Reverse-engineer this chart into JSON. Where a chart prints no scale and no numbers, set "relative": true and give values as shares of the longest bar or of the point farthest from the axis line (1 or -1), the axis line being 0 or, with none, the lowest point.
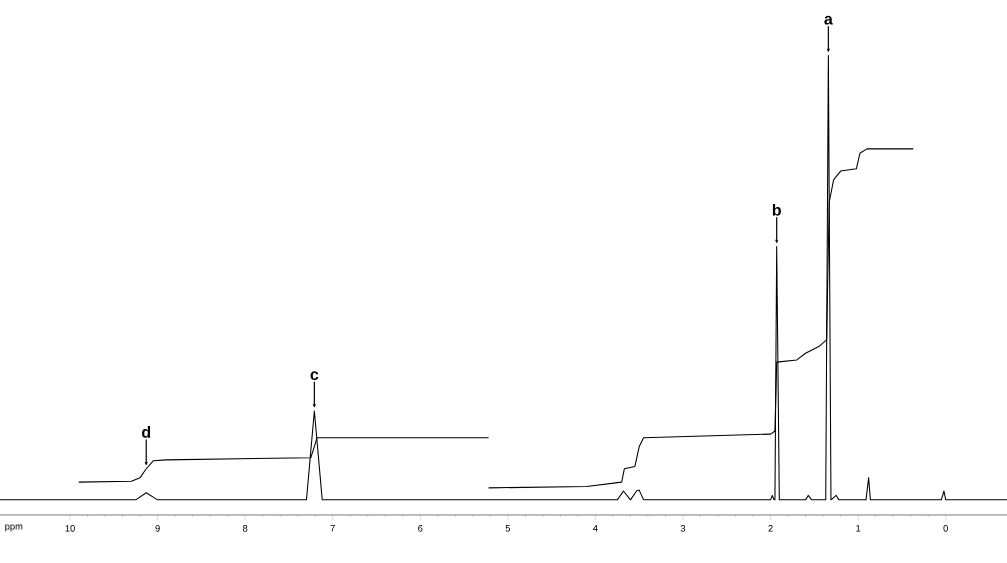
{
  "chart_data": {
    "type": "line",
    "relative": true,
    "xlabel": "ppm",
    "xlim": [
      10.8,
      -0.7
    ],
    "xticks": [
      10,
      9,
      8,
      7,
      6,
      5,
      4,
      3,
      2,
      1,
      0
    ],
    "series": [
      {
        "color": "#000000",
        "x": [
          10.8,
          9.25,
          9.13,
          9.0,
          7.3,
          7.21,
          7.12,
          3.75,
          3.68,
          3.6,
          3.53,
          3.5,
          3.45,
          2.0,
          1.98,
          1.96,
          1.95,
          1.93,
          1.9,
          1.6,
          1.57,
          1.53,
          1.37,
          1.34,
          1.31,
          1.25,
          1.22,
          0.91,
          0.88,
          0.86,
          0.05,
          0.02,
          0.0,
          -0.7
        ],
        "values": [
          0,
          0,
          0.016,
          0,
          0,
          0.2,
          0,
          0,
          0.02,
          0,
          0.02,
          0.022,
          0,
          0,
          0.01,
          0,
          0,
          0.57,
          0,
          0,
          0.01,
          0,
          0,
          1,
          0,
          0.01,
          0,
          0,
          0.05,
          0,
          0,
          0.02,
          0,
          0
        ]
      },
      {
        "color": "#000000",
        "x": [
          9.9,
          9.3,
          9.2,
          9.13,
          9.05,
          8.9,
          7.25,
          7.21,
          7.18,
          5.22
        ],
        "values": [
          0.04,
          0.042,
          0.05,
          0.07,
          0.088,
          0.09,
          0.095,
          0.12,
          0.14,
          0.14
        ]
      },
      {
        "color": "#000000",
        "x": [
          5.22,
          4.1,
          3.7,
          3.67,
          3.55,
          3.5,
          3.45,
          2.0,
          1.95,
          1.93,
          1.7,
          1.6,
          1.45,
          1.36,
          1.33,
          1.28,
          1.2,
          1.02,
          0.98,
          0.9,
          0.37
        ],
        "values": [
          0.027,
          0.03,
          0.04,
          0.07,
          0.075,
          0.12,
          0.14,
          0.148,
          0.155,
          0.31,
          0.315,
          0.33,
          0.345,
          0.36,
          0.67,
          0.72,
          0.74,
          0.745,
          0.78,
          0.79,
          0.79
        ]
      }
    ],
    "annotations": [
      {
        "text": "a",
        "x": 1.34,
        "y": 1.0
      },
      {
        "text": "b",
        "x": 1.93,
        "y": 0.57
      },
      {
        "text": "c",
        "x": 7.21,
        "y": 0.2
      },
      {
        "text": "d",
        "x": 9.13,
        "y": 0.07
      }
    ],
    "grid": false,
    "marker": "none",
    "line_style": "solid"
  }
}
